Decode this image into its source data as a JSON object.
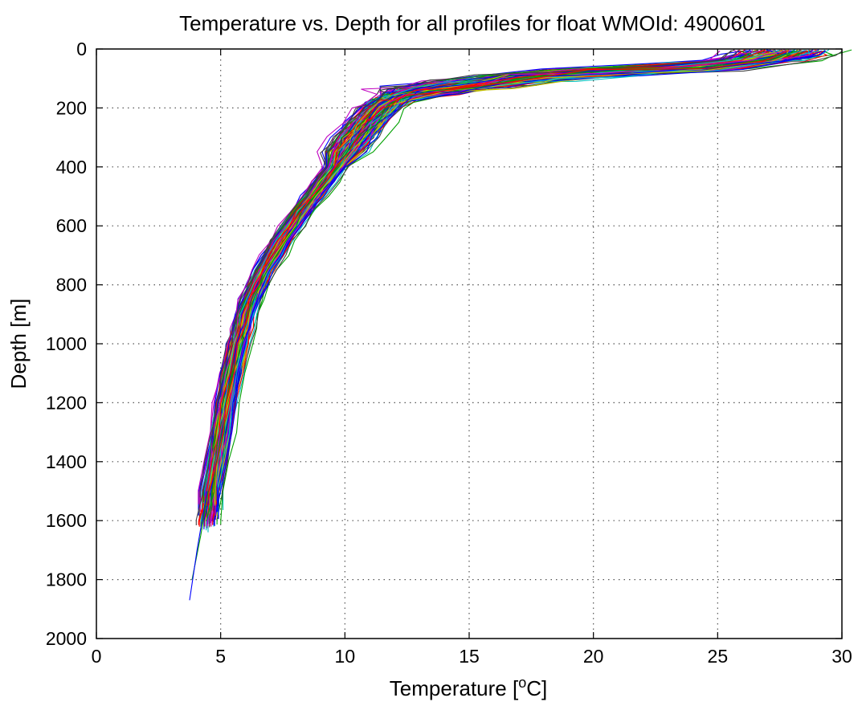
{
  "chart_data": {
    "type": "line",
    "title": "Temperature vs. Depth for all profiles for float WMOId: 4900601",
    "xlabel_main": "Temperature [",
    "xlabel_sup": "o",
    "xlabel_end": "C]",
    "ylabel": "Depth [m]",
    "xlim": [
      0,
      30
    ],
    "ylim": [
      0,
      2000
    ],
    "y_reversed": true,
    "xticks": [
      0,
      5,
      10,
      15,
      20,
      25,
      30
    ],
    "yticks": [
      0,
      200,
      400,
      600,
      800,
      1000,
      1200,
      1400,
      1600,
      1800,
      2000
    ],
    "grid": true,
    "legend": "none",
    "series_colors": [
      "#0000ff",
      "#00a000",
      "#ff0000",
      "#00c0c0",
      "#c000c0",
      "#c0c000",
      "#404040"
    ],
    "mean_profile": {
      "depth": [
        5,
        20,
        40,
        60,
        80,
        100,
        120,
        140,
        160,
        180,
        200,
        250,
        300,
        350,
        400,
        450,
        500,
        550,
        600,
        650,
        700,
        750,
        800,
        850,
        900,
        950,
        1000,
        1100,
        1200,
        1300,
        1400,
        1500,
        1600
      ],
      "temp": [
        27.6,
        27.4,
        26.5,
        24.0,
        20.0,
        17.0,
        15.0,
        13.3,
        12.2,
        11.7,
        11.4,
        10.9,
        10.4,
        10.0,
        9.6,
        9.15,
        8.7,
        8.25,
        7.85,
        7.45,
        7.1,
        6.75,
        6.45,
        6.2,
        6.0,
        5.85,
        5.7,
        5.45,
        5.2,
        5.0,
        4.8,
        4.6,
        4.4
      ]
    },
    "deep_tails": [
      {
        "depth": [
          1500,
          1650,
          1800
        ],
        "temp": [
          4.5,
          4.2,
          3.85
        ]
      },
      {
        "depth": [
          1500,
          1700,
          1870
        ],
        "temp": [
          4.45,
          4.05,
          3.75
        ]
      }
    ],
    "profile_count": 150
  }
}
